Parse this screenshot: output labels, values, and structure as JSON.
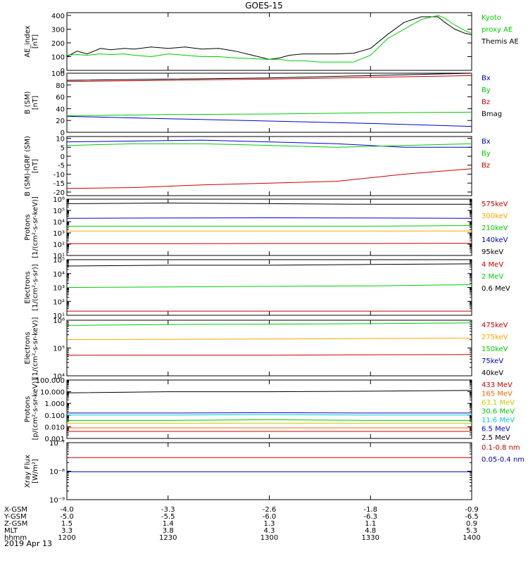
{
  "title": "GOES-15",
  "date_label": "2019 Apr 13",
  "time_axis": {
    "row_labels": [
      "X-GSM",
      "Y-GSM",
      "Z-GSM",
      "MLT",
      "hhmm"
    ],
    "ticks": [
      {
        "t": 0,
        "vals": [
          "-4.0",
          "-5.0",
          "1.5",
          "3.3",
          "1200"
        ]
      },
      {
        "t": 30,
        "vals": [
          "-3.3",
          "-5.5",
          "1.4",
          "3.8",
          "1230"
        ]
      },
      {
        "t": 60,
        "vals": [
          "-2.6",
          "-6.0",
          "1.3",
          "4.3",
          "1300"
        ]
      },
      {
        "t": 90,
        "vals": [
          "-1.8",
          "-6.3",
          "1.1",
          "4.8",
          "1330"
        ]
      },
      {
        "t": 120,
        "vals": [
          "-0.9",
          "-6.5",
          "0.9",
          "5.3",
          "1400"
        ]
      }
    ]
  },
  "chart_data": [
    {
      "id": "ae",
      "type": "line",
      "ylabel": [
        "AE_index",
        "[nT]"
      ],
      "yscale": "linear",
      "ylim": [
        0,
        420
      ],
      "yticks": [
        0,
        100,
        200,
        300,
        400
      ],
      "yticklabels": [
        "0",
        "100",
        "200",
        "300",
        "400"
      ],
      "x": [
        0,
        3,
        6,
        10,
        13,
        17,
        20,
        25,
        30,
        35,
        40,
        45,
        50,
        55,
        60,
        63,
        66,
        70,
        75,
        80,
        85,
        90,
        95,
        100,
        105,
        110,
        112,
        115,
        118,
        120
      ],
      "series": [
        {
          "name": "Themis AE",
          "color": "#000000",
          "values": [
            100,
            140,
            120,
            160,
            150,
            160,
            155,
            170,
            160,
            170,
            155,
            160,
            140,
            110,
            80,
            90,
            110,
            120,
            120,
            120,
            125,
            160,
            260,
            350,
            390,
            390,
            350,
            300,
            270,
            260
          ]
        },
        {
          "name": "Kyoto proxy AE",
          "color": "#00cc00",
          "values": [
            110,
            115,
            110,
            120,
            115,
            120,
            110,
            100,
            120,
            110,
            100,
            100,
            90,
            85,
            80,
            80,
            70,
            70,
            60,
            60,
            60,
            110,
            230,
            300,
            370,
            400,
            380,
            330,
            290,
            270
          ]
        }
      ],
      "legend": [
        {
          "text": "Kyoto",
          "color": "#00cc00"
        },
        {
          "text": "proxy AE",
          "color": "#00cc00"
        },
        {
          "text": "Themis AE",
          "color": "#000000"
        }
      ]
    },
    {
      "id": "bsm",
      "type": "line",
      "ylabel": [
        "B (SM)",
        "[nT]"
      ],
      "yscale": "linear",
      "ylim": [
        0,
        100
      ],
      "yticks": [
        0,
        20,
        40,
        60,
        80,
        100
      ],
      "yticklabels": [
        "0",
        "20",
        "40",
        "60",
        "80",
        "100"
      ],
      "x": [
        0,
        30,
        60,
        90,
        120
      ],
      "series": [
        {
          "name": "Bmag",
          "color": "#000000",
          "values": [
            88,
            90,
            92,
            96,
            100
          ]
        },
        {
          "name": "Bz",
          "color": "#cc0000",
          "values": [
            86,
            88,
            90,
            93,
            96
          ]
        },
        {
          "name": "By",
          "color": "#00cc00",
          "values": [
            28,
            30,
            31,
            33,
            34
          ]
        },
        {
          "name": "Bx",
          "color": "#0000cc",
          "values": [
            27,
            23,
            19,
            15,
            10
          ]
        }
      ],
      "legend": [
        {
          "text": "Bx",
          "color": "#0000cc"
        },
        {
          "text": "By",
          "color": "#00cc00"
        },
        {
          "text": "Bz",
          "color": "#cc0000"
        },
        {
          "text": "Bmag",
          "color": "#000000"
        }
      ]
    },
    {
      "id": "bigrf",
      "type": "line",
      "ylabel": [
        "B (SM)-IGRF (SM)",
        "[nT]"
      ],
      "yscale": "linear",
      "ylim": [
        -22,
        11
      ],
      "yticks": [
        -20,
        -15,
        -10,
        -5,
        0,
        5,
        10
      ],
      "yticklabels": [
        "-20",
        "-15",
        "-10",
        "-5",
        "0",
        "5",
        "10"
      ],
      "x": [
        0,
        20,
        40,
        60,
        80,
        100,
        120
      ],
      "series": [
        {
          "name": "Bx",
          "color": "#0000cc",
          "values": [
            8,
            8.5,
            9,
            8,
            7,
            5,
            5
          ]
        },
        {
          "name": "By",
          "color": "#00cc00",
          "values": [
            6,
            7,
            7,
            6,
            5,
            6,
            7
          ]
        },
        {
          "name": "Bz",
          "color": "#cc0000",
          "values": [
            -18,
            -17.5,
            -16,
            -15,
            -14,
            -10,
            -7
          ]
        }
      ],
      "legend": [
        {
          "text": "Bx",
          "color": "#0000cc"
        },
        {
          "text": "By",
          "color": "#00cc00"
        },
        {
          "text": "Bz",
          "color": "#cc0000"
        }
      ]
    },
    {
      "id": "protons_kev",
      "type": "line",
      "ylabel": [
        "Protons",
        "[1/(cm²-s-sr-keV)]"
      ],
      "yscale": "log",
      "ylim": [
        10,
        1000000
      ],
      "yticks": [
        10,
        100,
        1000,
        10000,
        100000,
        1000000
      ],
      "yticklabels": [
        "10¹",
        "10²",
        "10³",
        "10⁴",
        "10⁵",
        "10⁶"
      ],
      "x": [
        0,
        30,
        60,
        90,
        120
      ],
      "series": [
        {
          "name": "95keV",
          "color": "#000000",
          "values": [
            400000,
            450000,
            400000,
            350000,
            350000
          ]
        },
        {
          "name": "140keV",
          "color": "#0000cc",
          "values": [
            20000,
            21000,
            22000,
            21000,
            20000
          ]
        },
        {
          "name": "210keV",
          "color": "#00cc00",
          "values": [
            4000,
            4000,
            4000,
            4000,
            4500
          ]
        },
        {
          "name": "300keV",
          "color": "#ffa500",
          "values": [
            1500,
            1500,
            1500,
            1500,
            1500
          ]
        },
        {
          "name": "575keV",
          "color": "#cc0000",
          "values": [
            110,
            110,
            115,
            115,
            120
          ]
        }
      ],
      "legend": [
        {
          "text": "575keV",
          "color": "#cc0000"
        },
        {
          "text": "300keV",
          "color": "#ffa500"
        },
        {
          "text": "210keV",
          "color": "#00cc00"
        },
        {
          "text": "140keV",
          "color": "#0000cc"
        },
        {
          "text": "95keV",
          "color": "#000000"
        }
      ]
    },
    {
      "id": "electrons_mev",
      "type": "line",
      "ylabel": [
        "Electrons",
        "[1/(cm²-s-sr)]"
      ],
      "yscale": "log",
      "ylim": [
        10,
        100000
      ],
      "yticks": [
        10,
        100,
        1000,
        10000,
        100000
      ],
      "yticklabels": [
        "10¹",
        "10²",
        "10³",
        "10⁴",
        "10⁵"
      ],
      "x": [
        0,
        30,
        60,
        90,
        120
      ],
      "series": [
        {
          "name": "0.6 MeV",
          "color": "#000000",
          "values": [
            35000,
            40000,
            40000,
            45000,
            50000
          ]
        },
        {
          "name": "2 MeV",
          "color": "#00cc00",
          "values": [
            1000,
            1100,
            1200,
            1300,
            1600
          ]
        },
        {
          "name": "4 MeV",
          "color": "#cc0000",
          "values": [
            20,
            20,
            20,
            20,
            20
          ]
        }
      ],
      "legend": [
        {
          "text": "4 MeV",
          "color": "#cc0000"
        },
        {
          "text": "2 MeV",
          "color": "#00cc00"
        },
        {
          "text": "0.6 MeV",
          "color": "#000000"
        }
      ]
    },
    {
      "id": "electrons_kev",
      "type": "line",
      "ylabel": [
        "Electrons",
        "[1/(cm²-s-sr-keV)]"
      ],
      "yscale": "log",
      "ylim": [
        10000,
        1000000
      ],
      "yticks": [
        10000,
        100000,
        1000000
      ],
      "yticklabels": [
        "10⁴",
        "10⁵",
        "10⁶"
      ],
      "x": [
        0,
        30,
        60,
        90,
        120
      ],
      "series": [
        {
          "name": "475keV",
          "color": "#cc0000",
          "values": [
            55000,
            55000,
            55000,
            57000,
            58000
          ]
        },
        {
          "name": "275keV",
          "color": "#ffa500",
          "values": [
            200000,
            205000,
            210000,
            220000,
            225000
          ]
        },
        {
          "name": "150keV",
          "color": "#00cc00",
          "values": [
            650000,
            700000,
            720000,
            750000,
            800000
          ]
        }
      ],
      "legend": [
        {
          "text": "475keV",
          "color": "#cc0000"
        },
        {
          "text": "275keV",
          "color": "#ffa500"
        },
        {
          "text": "150keV",
          "color": "#00cc00"
        },
        {
          "text": "75keV",
          "color": "#0000cc"
        },
        {
          "text": "40keV",
          "color": "#000000"
        }
      ]
    },
    {
      "id": "protons_mev",
      "type": "line",
      "ylabel": [
        "Protons",
        "[p/(cm²-s-sr-keV)]"
      ],
      "yscale": "log",
      "ylim": [
        0.001,
        100
      ],
      "yticks": [
        0.001,
        0.01,
        0.1,
        1,
        10,
        100
      ],
      "yticklabels": [
        "0.001",
        "0.010",
        "0.100",
        "1.000",
        "10.000",
        "100.000"
      ],
      "x": [
        0,
        30,
        60,
        90,
        120
      ],
      "series": [
        {
          "name": "2.5 MeV",
          "color": "#000000",
          "values": [
            8,
            10,
            10,
            11,
            13
          ]
        },
        {
          "name": "6.5 MeV",
          "color": "#0000cc",
          "values": [
            0.15,
            0.15,
            0.16,
            0.15,
            0.15
          ]
        },
        {
          "name": "11.6 MeV",
          "color": "#00cccc",
          "values": [
            0.1,
            0.1,
            0.11,
            0.1,
            0.1
          ]
        },
        {
          "name": "30.6 MeV",
          "color": "#00cc00",
          "values": [
            0.035,
            0.035,
            0.04,
            0.035,
            0.035
          ]
        },
        {
          "name": "63.1 MeV",
          "color": "#cccc00",
          "values": [
            0.02,
            0.02,
            0.02,
            0.02,
            0.02
          ]
        },
        {
          "name": "165 MeV",
          "color": "#ff6600",
          "values": [
            0.008,
            0.008,
            0.008,
            0.008,
            0.008
          ]
        },
        {
          "name": "433 MeV",
          "color": "#cc0000",
          "values": [
            0.004,
            0.004,
            0.004,
            0.004,
            0.004
          ]
        }
      ],
      "legend": [
        {
          "text": "433 MeV",
          "color": "#cc0000"
        },
        {
          "text": "165 MeV",
          "color": "#ff6600"
        },
        {
          "text": "63.1 MeV",
          "color": "#cccc00"
        },
        {
          "text": "30.6 MeV",
          "color": "#00cc00"
        },
        {
          "text": "11.6 MeV",
          "color": "#00cccc"
        },
        {
          "text": "6.5 MeV",
          "color": "#0000cc"
        },
        {
          "text": "2.5 MeV",
          "color": "#000000"
        }
      ]
    },
    {
      "id": "xray",
      "type": "line",
      "ylabel": [
        "Xray Flux",
        "[W/m²]"
      ],
      "yscale": "log",
      "ylim": [
        1e-09,
        1e-07
      ],
      "yticks": [
        1e-09,
        1e-08,
        1e-07
      ],
      "yticklabels": [
        "10⁻⁹",
        "10⁻⁸",
        "10⁻⁷"
      ],
      "x": [
        0,
        30,
        60,
        90,
        120
      ],
      "series": [
        {
          "name": "0.1-0.8 nm",
          "color": "#cc0000",
          "values": [
            3e-08,
            3e-08,
            3e-08,
            3e-08,
            3e-08
          ]
        },
        {
          "name": "0.05-0.4 nm",
          "color": "#0000cc",
          "values": [
            9.5e-09,
            9.5e-09,
            9.5e-09,
            9.5e-09,
            9.5e-09
          ]
        }
      ],
      "legend": [
        {
          "text": "0.1-0.8 nm",
          "color": "#cc0000"
        },
        {
          "text": "0.05-0.4 nm",
          "color": "#0000cc"
        }
      ]
    }
  ]
}
